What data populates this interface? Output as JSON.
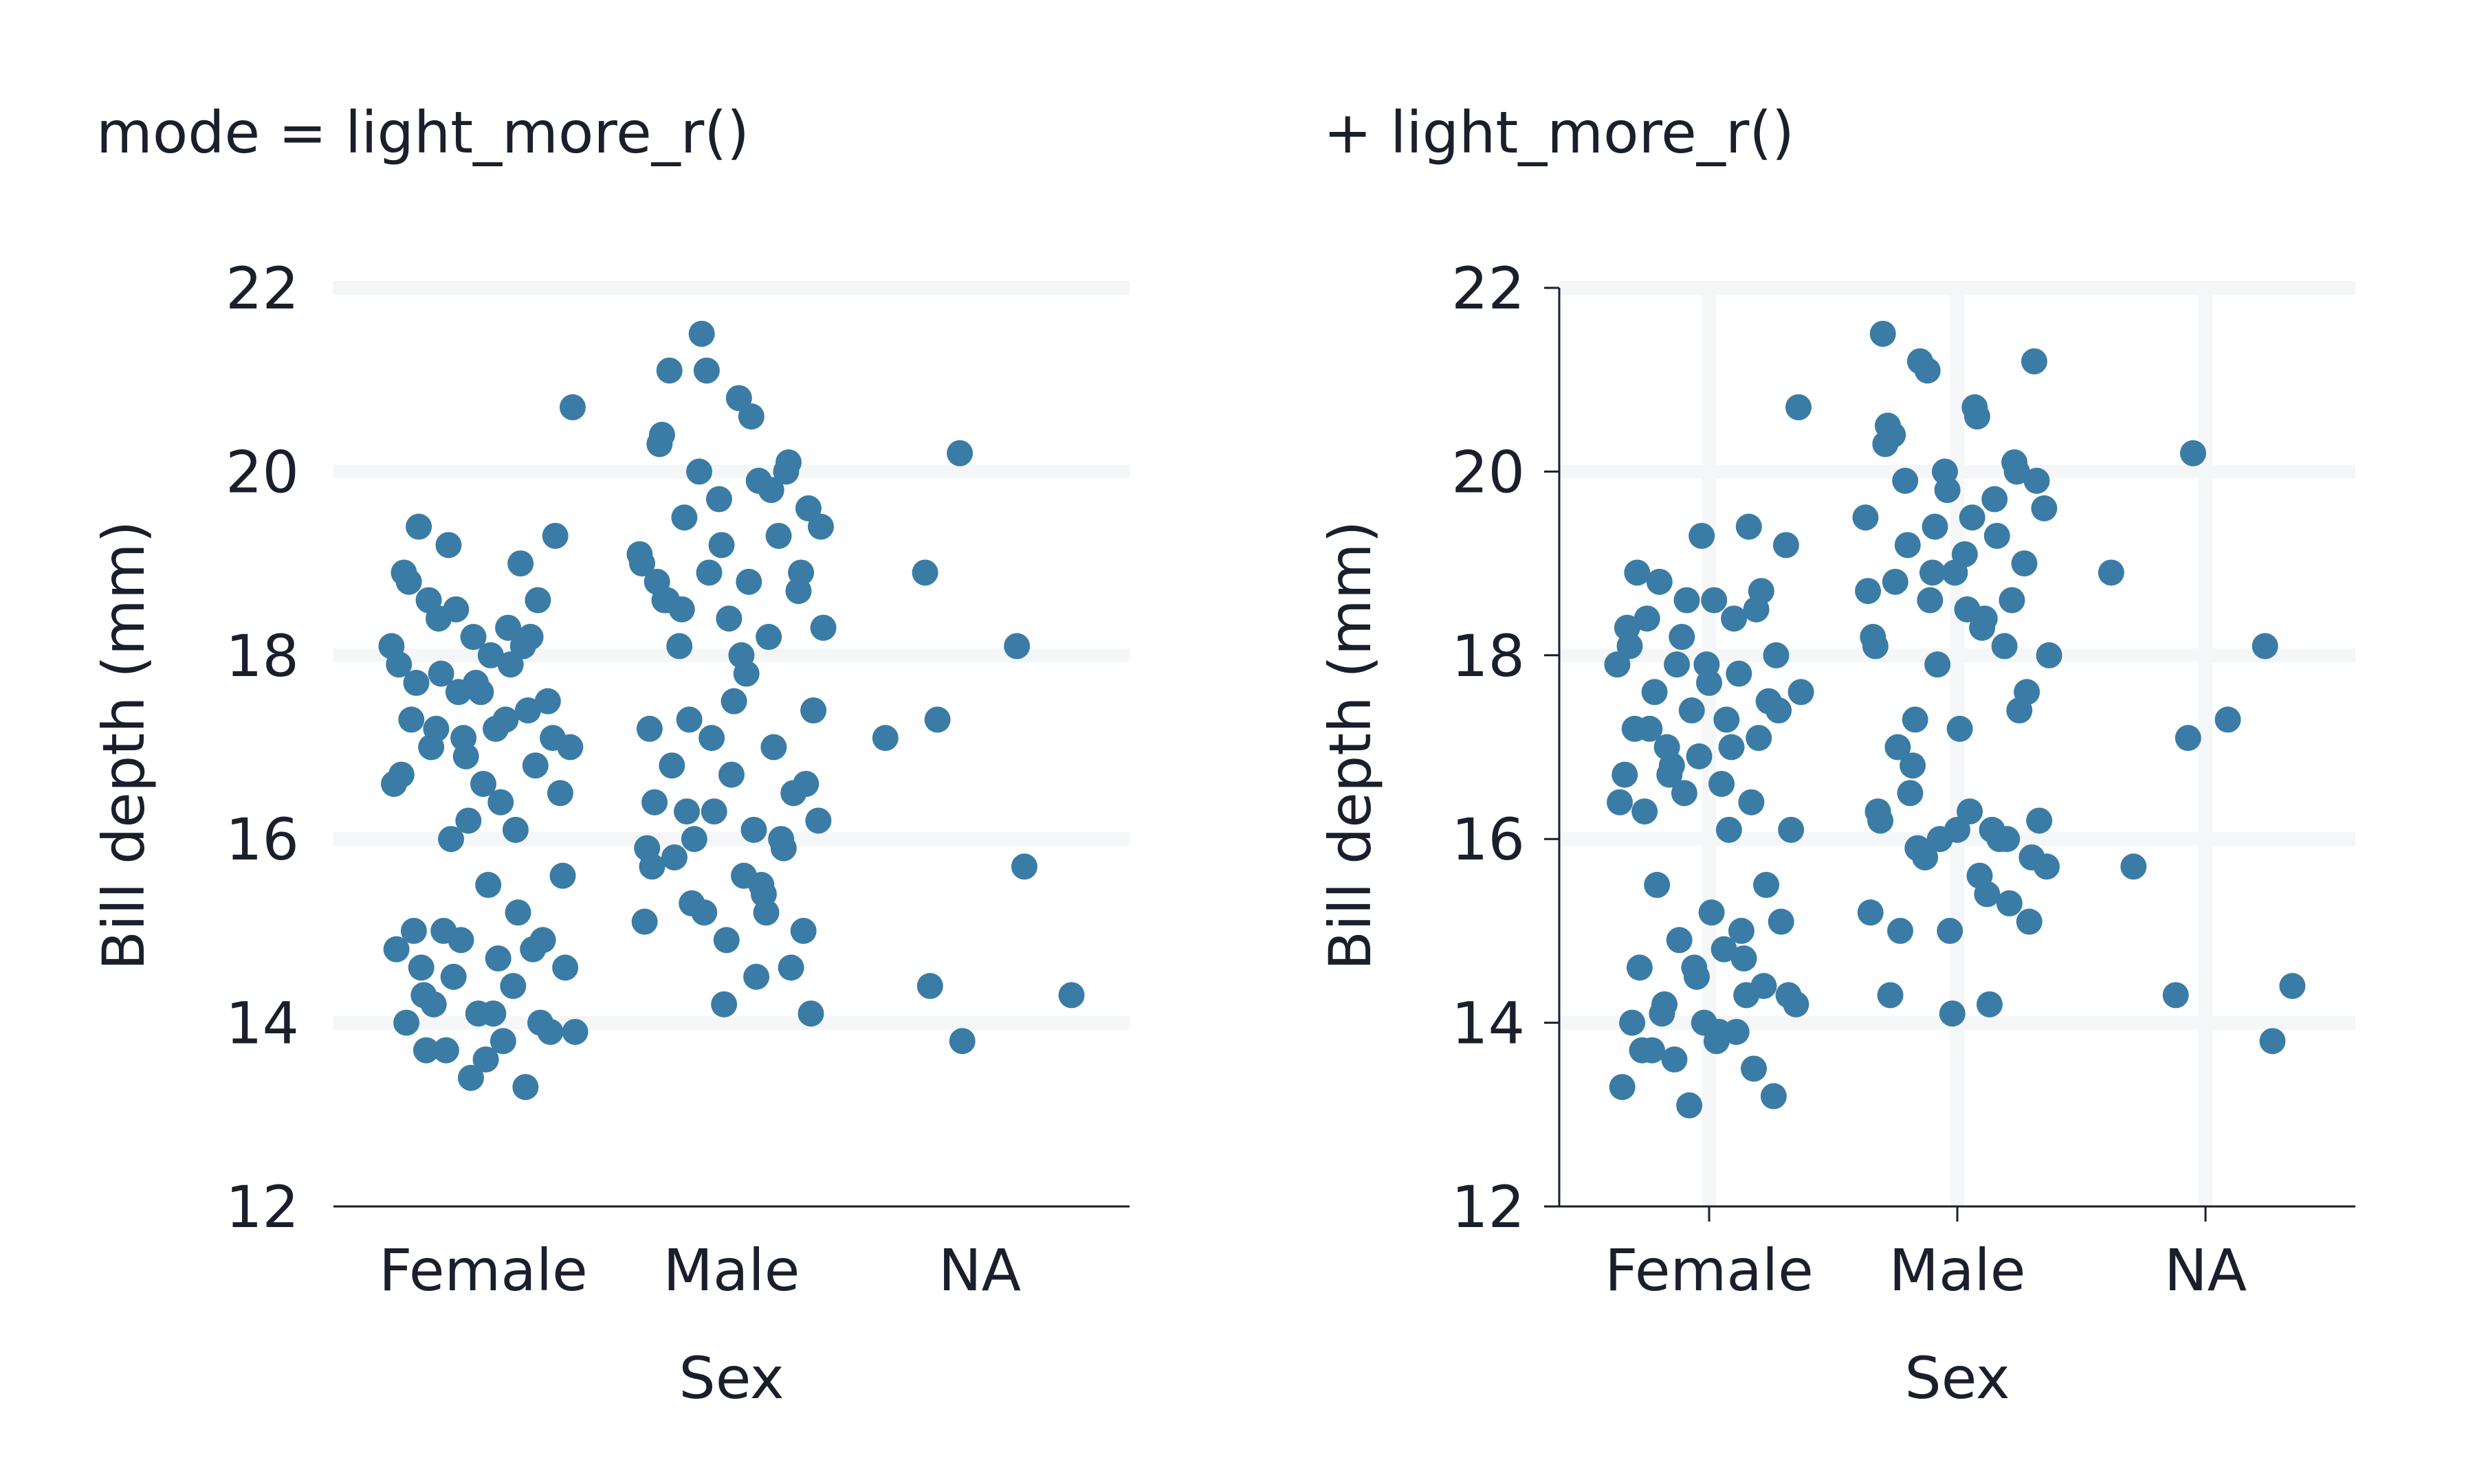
{
  "chart_data": [
    {
      "type": "scatter",
      "title": "mode = light_more_r()",
      "xlabel": "Sex",
      "ylabel": "Bill depth (mm)",
      "categories": [
        "Female",
        "Male",
        "NA"
      ],
      "yticks": [
        "12",
        "14",
        "16",
        "18",
        "20",
        "22"
      ],
      "ylim": [
        12,
        22
      ],
      "grid": "horizontal",
      "left_axis_line": false,
      "x_ticks_marked": false,
      "point_color": "#3a7ca5",
      "grid_color": "#f4f6f8",
      "series": [
        {
          "category": "Female",
          "jitter": [
            -0.37,
            -0.35,
            -0.34,
            -0.33,
            -0.31,
            -0.3,
            -0.29,
            -0.28,
            -0.26,
            -0.25,
            -0.23,
            -0.22,
            -0.21,
            -0.2,
            -0.18,
            -0.17,
            -0.15,
            -0.14,
            -0.13,
            -0.12,
            -0.1,
            -0.09,
            -0.08,
            -0.07,
            -0.05,
            -0.04,
            -0.03,
            -0.02,
            0.0,
            0.01,
            0.02,
            0.03,
            0.05,
            0.06,
            0.07,
            0.08,
            0.1,
            0.11,
            0.12,
            0.13,
            0.15,
            0.16,
            0.17,
            0.18,
            0.2,
            0.21,
            0.22,
            0.24,
            0.26,
            0.27,
            0.29,
            0.31,
            0.33,
            0.35,
            0.37,
            -0.36,
            -0.32,
            -0.27,
            -0.24,
            -0.19,
            -0.16,
            -0.11,
            -0.06,
            -0.01,
            0.04,
            0.09,
            0.14,
            0.19,
            0.23,
            0.28,
            0.32,
            0.36
          ],
          "values": [
            18.1,
            14.8,
            17.9,
            16.7,
            14.0,
            18.8,
            17.3,
            15.0,
            19.4,
            14.6,
            13.7,
            18.6,
            17.0,
            14.2,
            18.4,
            17.8,
            13.7,
            19.2,
            16.0,
            14.5,
            17.6,
            14.9,
            17.1,
            16.9,
            13.4,
            18.2,
            17.7,
            14.1,
            16.6,
            13.6,
            15.5,
            18.0,
            17.2,
            14.7,
            16.4,
            13.8,
            18.3,
            17.9,
            14.4,
            16.1,
            19.0,
            18.1,
            13.3,
            17.4,
            14.8,
            16.8,
            18.6,
            14.9,
            17.5,
            13.9,
            19.3,
            16.5,
            14.6,
            17.0,
            13.9,
            16.6,
            18.9,
            17.7,
            14.3,
            17.2,
            15.0,
            18.5,
            16.2,
            17.6,
            14.1,
            17.3,
            15.2,
            18.2,
            14.0,
            17.1,
            15.6,
            20.7
          ]
        },
        {
          "category": "Male",
          "jitter": [
            -0.37,
            -0.35,
            -0.33,
            -0.31,
            -0.29,
            -0.27,
            -0.25,
            -0.23,
            -0.21,
            -0.19,
            -0.17,
            -0.15,
            -0.13,
            -0.11,
            -0.09,
            -0.07,
            -0.05,
            -0.03,
            -0.01,
            0.01,
            0.03,
            0.05,
            0.07,
            0.09,
            0.11,
            0.13,
            0.15,
            0.17,
            0.19,
            0.21,
            0.23,
            0.25,
            0.27,
            0.29,
            0.31,
            0.33,
            0.35,
            0.37,
            -0.36,
            -0.32,
            -0.28,
            -0.24,
            -0.2,
            -0.16,
            -0.12,
            -0.08,
            -0.04,
            0.0,
            0.04,
            0.08,
            0.12,
            0.16,
            0.2,
            0.24,
            0.28,
            0.32,
            0.36,
            -0.34,
            -0.26,
            -0.18,
            -0.1,
            -0.02,
            0.06,
            0.14,
            0.22,
            0.3,
            -0.3,
            0.1
          ],
          "values": [
            19.1,
            15.1,
            17.2,
            16.4,
            20.3,
            18.6,
            21.1,
            15.8,
            18.1,
            19.5,
            17.3,
            16.0,
            20.0,
            15.2,
            18.9,
            16.3,
            19.7,
            14.2,
            18.4,
            17.5,
            20.8,
            15.6,
            18.8,
            16.1,
            19.9,
            15.4,
            18.2,
            17.0,
            19.3,
            15.9,
            20.1,
            16.5,
            18.7,
            15.0,
            19.6,
            17.4,
            16.2,
            18.3,
            19.0,
            15.7,
            20.4,
            16.8,
            18.5,
            15.3,
            21.5,
            17.1,
            19.2,
            16.7,
            18.0,
            20.6,
            15.5,
            19.8,
            16.0,
            14.6,
            18.9,
            14.1,
            19.4,
            15.9,
            18.6,
            16.3,
            21.1,
            14.9,
            17.8,
            15.2,
            20.0,
            16.6,
            18.8,
            14.5
          ]
        },
        {
          "category": "NA",
          "jitter": [
            -0.38,
            -0.22,
            -0.17,
            -0.2,
            -0.08,
            -0.07,
            0.15,
            0.18,
            0.37
          ],
          "values": [
            17.1,
            18.9,
            17.3,
            14.4,
            20.2,
            13.8,
            18.1,
            15.7,
            14.3
          ]
        }
      ]
    },
    {
      "type": "scatter",
      "title": "+ light_more_r()",
      "xlabel": "Sex",
      "ylabel": "Bill depth (mm)",
      "categories": [
        "Female",
        "Male",
        "NA"
      ],
      "yticks": [
        "12",
        "14",
        "16",
        "18",
        "20",
        "22"
      ],
      "ylim": [
        12,
        22
      ],
      "grid": "both",
      "left_axis_line": true,
      "x_ticks_marked": true,
      "point_color": "#3a7ca5",
      "grid_color": "#f4f6f8",
      "series": [
        {
          "category": "Female",
          "jitter": [
            -0.37,
            -0.35,
            -0.34,
            -0.33,
            -0.31,
            -0.3,
            -0.29,
            -0.28,
            -0.26,
            -0.25,
            -0.23,
            -0.22,
            -0.21,
            -0.2,
            -0.18,
            -0.17,
            -0.15,
            -0.14,
            -0.13,
            -0.12,
            -0.1,
            -0.09,
            -0.08,
            -0.07,
            -0.05,
            -0.04,
            -0.03,
            -0.02,
            0.0,
            0.01,
            0.02,
            0.03,
            0.05,
            0.06,
            0.07,
            0.08,
            0.1,
            0.11,
            0.12,
            0.13,
            0.15,
            0.16,
            0.17,
            0.18,
            0.2,
            0.21,
            0.22,
            0.24,
            0.26,
            0.27,
            0.29,
            0.31,
            0.33,
            0.35,
            0.37,
            -0.36,
            -0.32,
            -0.27,
            -0.24,
            -0.19,
            -0.16,
            -0.11,
            -0.06,
            -0.01,
            0.04,
            0.09,
            0.14,
            0.19,
            0.23,
            0.28,
            0.32,
            0.36
          ],
          "values": [
            17.9,
            13.3,
            16.7,
            18.3,
            14.0,
            17.2,
            18.9,
            14.6,
            16.3,
            18.4,
            13.7,
            17.6,
            15.5,
            18.8,
            14.2,
            17.0,
            16.8,
            13.6,
            17.9,
            14.9,
            16.5,
            18.6,
            13.1,
            17.4,
            14.5,
            16.9,
            19.3,
            14.0,
            17.7,
            15.2,
            18.6,
            13.8,
            16.6,
            14.8,
            17.3,
            16.1,
            18.4,
            13.9,
            17.8,
            15.0,
            14.3,
            19.4,
            16.4,
            13.5,
            17.1,
            18.7,
            14.4,
            17.5,
            13.2,
            18.0,
            15.1,
            19.2,
            16.1,
            14.2,
            17.6,
            16.4,
            18.1,
            13.7,
            17.2,
            14.1,
            16.7,
            18.2,
            14.6,
            17.9,
            13.9,
            17.0,
            14.7,
            18.5,
            15.5,
            17.4,
            14.3,
            20.7
          ]
        },
        {
          "category": "Male",
          "jitter": [
            -0.37,
            -0.35,
            -0.33,
            -0.31,
            -0.29,
            -0.27,
            -0.25,
            -0.23,
            -0.21,
            -0.19,
            -0.17,
            -0.15,
            -0.13,
            -0.11,
            -0.09,
            -0.07,
            -0.05,
            -0.03,
            -0.01,
            0.01,
            0.03,
            0.05,
            0.07,
            0.09,
            0.11,
            0.13,
            0.15,
            0.17,
            0.19,
            0.21,
            0.23,
            0.25,
            0.27,
            0.29,
            0.31,
            0.33,
            0.35,
            0.37,
            -0.36,
            -0.32,
            -0.28,
            -0.24,
            -0.2,
            -0.16,
            -0.12,
            -0.08,
            -0.04,
            0.0,
            0.04,
            0.08,
            0.12,
            0.16,
            0.2,
            0.24,
            0.28,
            0.32,
            0.36,
            -0.34,
            -0.26,
            -0.18,
            -0.1,
            -0.02,
            0.06,
            0.14,
            0.22,
            0.3,
            -0.3,
            0.1
          ],
          "values": [
            19.5,
            15.2,
            18.1,
            16.2,
            20.3,
            14.3,
            18.8,
            15.0,
            19.9,
            16.5,
            17.3,
            21.2,
            15.8,
            18.6,
            19.4,
            16.0,
            20.0,
            15.0,
            18.9,
            17.2,
            19.1,
            16.3,
            20.7,
            15.6,
            18.4,
            14.2,
            19.7,
            16.0,
            18.1,
            15.3,
            20.1,
            17.4,
            19.0,
            15.1,
            21.2,
            16.2,
            19.6,
            18.0,
            18.7,
            16.3,
            20.5,
            17.0,
            19.2,
            15.9,
            21.1,
            17.9,
            19.8,
            16.1,
            18.5,
            20.6,
            15.4,
            19.3,
            16.0,
            20.0,
            17.6,
            19.9,
            15.7,
            18.2,
            20.4,
            16.8,
            18.9,
            14.1,
            19.5,
            16.1,
            18.6,
            15.8,
            21.5,
            18.3
          ]
        },
        {
          "category": "NA",
          "jitter": [
            -0.38,
            -0.29,
            -0.12,
            -0.07,
            -0.05,
            0.09,
            0.24,
            0.27,
            0.35
          ],
          "values": [
            18.9,
            15.7,
            14.3,
            17.1,
            20.2,
            17.3,
            18.1,
            13.8,
            14.4
          ]
        }
      ]
    }
  ]
}
